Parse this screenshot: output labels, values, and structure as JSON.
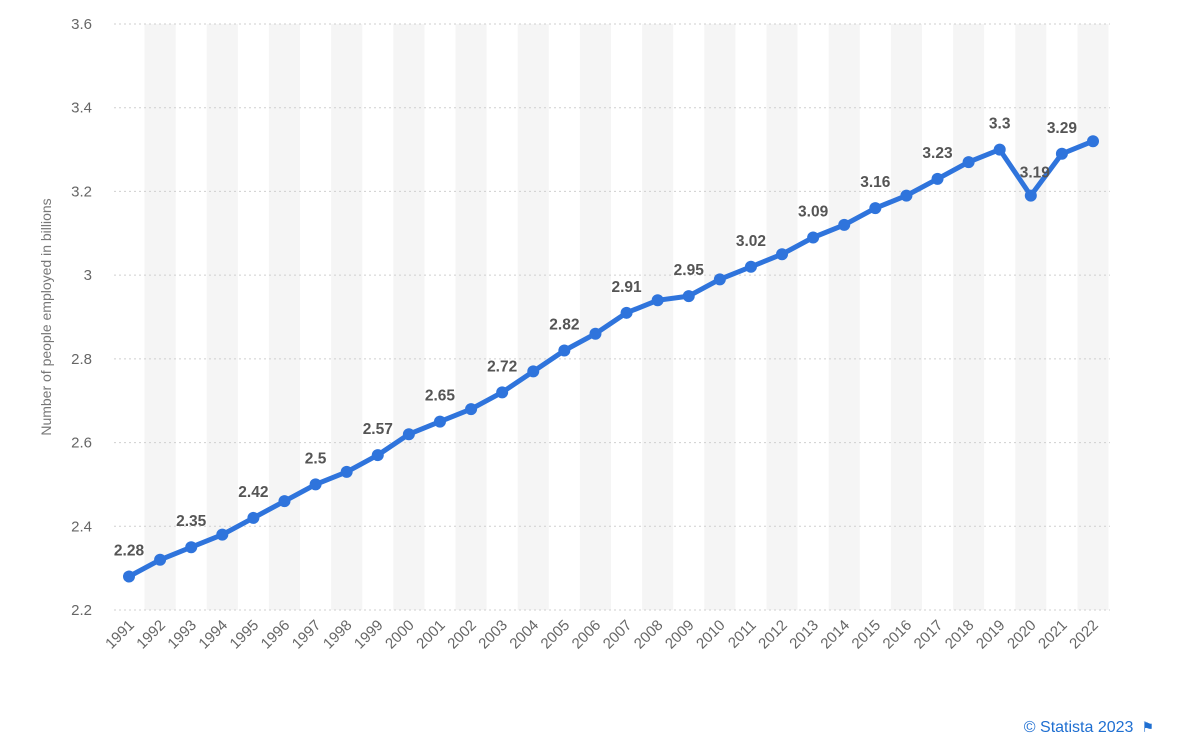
{
  "chart_data": {
    "type": "line",
    "title": "",
    "xlabel": "",
    "ylabel": "Number of people employed in billions",
    "ylim": [
      2.2,
      3.6
    ],
    "yticks": [
      "2.2",
      "2.4",
      "2.6",
      "2.8",
      "3",
      "3.2",
      "3.4",
      "3.6"
    ],
    "grid": true,
    "categories": [
      "1991",
      "1992",
      "1993",
      "1994",
      "1995",
      "1996",
      "1997",
      "1998",
      "1999",
      "2000",
      "2001",
      "2002",
      "2003",
      "2004",
      "2005",
      "2006",
      "2007",
      "2008",
      "2009",
      "2010",
      "2011",
      "2012",
      "2013",
      "2014",
      "2015",
      "2016",
      "2017",
      "2018",
      "2019",
      "2020",
      "2021",
      "2022"
    ],
    "series": [
      {
        "values": [
          2.28,
          2.32,
          2.35,
          2.38,
          2.42,
          2.46,
          2.5,
          2.53,
          2.57,
          2.62,
          2.65,
          2.68,
          2.72,
          2.77,
          2.82,
          2.86,
          2.91,
          2.94,
          2.95,
          2.99,
          3.02,
          3.05,
          3.09,
          3.12,
          3.16,
          3.19,
          3.23,
          3.27,
          3.3,
          3.19,
          3.29,
          3.32
        ],
        "color": "#2f74dc"
      }
    ],
    "data_labels": [
      {
        "year": "1991",
        "text": "2.28"
      },
      {
        "year": "1993",
        "text": "2.35"
      },
      {
        "year": "1995",
        "text": "2.42"
      },
      {
        "year": "1997",
        "text": "2.5"
      },
      {
        "year": "1999",
        "text": "2.57"
      },
      {
        "year": "2001",
        "text": "2.65"
      },
      {
        "year": "2003",
        "text": "2.72"
      },
      {
        "year": "2005",
        "text": "2.82"
      },
      {
        "year": "2007",
        "text": "2.91"
      },
      {
        "year": "2009",
        "text": "2.95"
      },
      {
        "year": "2011",
        "text": "3.02"
      },
      {
        "year": "2013",
        "text": "3.09"
      },
      {
        "year": "2015",
        "text": "3.16"
      },
      {
        "year": "2017",
        "text": "3.23"
      },
      {
        "year": "2019",
        "text": "3.3"
      },
      {
        "year": "2020",
        "text": "3.19"
      },
      {
        "year": "2021",
        "text": "3.29"
      }
    ]
  },
  "footer": {
    "credit": "© Statista 2023",
    "flag_icon": "flag-icon"
  }
}
